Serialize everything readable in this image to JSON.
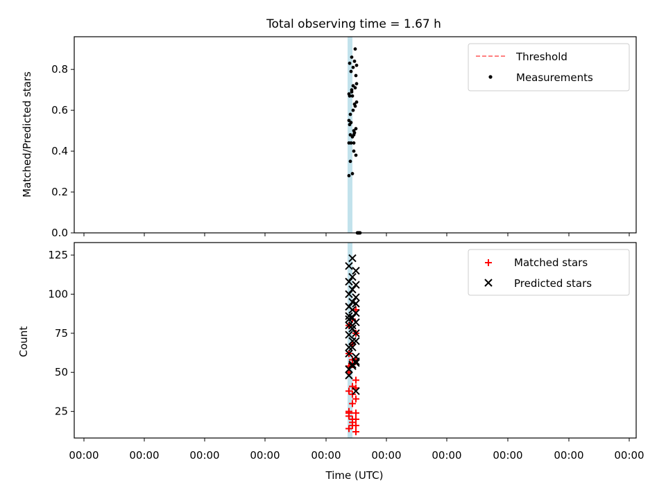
{
  "title": "Total observing time = 1.67 h",
  "chart_data": [
    {
      "type": "scatter",
      "panel": "top",
      "ylabel": "Matched/Predicted stars",
      "xlabel": "",
      "x_tick_labels": [
        "00:00",
        "00:00",
        "00:00",
        "00:00",
        "00:00",
        "00:00",
        "00:00",
        "00:00",
        "00:00",
        "00:00"
      ],
      "ylim": [
        0,
        0.96
      ],
      "y_ticks": [
        0,
        0.2,
        0.4,
        0.6,
        0.8
      ],
      "y_tick_labels": [
        "0.0",
        "0.2",
        "0.4",
        "0.6",
        "0.8"
      ],
      "grid": false,
      "legend": {
        "placement": "top-right",
        "entries": [
          "Threshold",
          "Measurements"
        ]
      },
      "series": [
        {
          "name": "Measurements",
          "marker": "dot",
          "color": "#000000",
          "x": [
            0,
            1,
            2,
            3,
            4,
            5,
            6,
            7,
            8,
            9,
            10,
            11,
            12,
            13,
            14,
            15,
            16,
            17,
            18,
            19,
            20,
            21,
            22,
            23,
            24,
            25,
            26,
            27,
            28,
            29,
            30,
            31,
            32,
            33,
            34,
            35,
            36,
            37,
            38,
            39,
            40,
            41,
            42,
            43,
            44,
            45,
            46,
            47,
            48,
            49,
            50
          ],
          "y": [
            0.28,
            0.44,
            0.58,
            0.62,
            0.7,
            0.73,
            0.81,
            0.83,
            0.84,
            0.79,
            0.77,
            0.67,
            0.55,
            0.5,
            0.48,
            0.9,
            0.86,
            0.82,
            0.72,
            0.67,
            0.63,
            0.54,
            0.51,
            0.47,
            0.44,
            0.4,
            0.35,
            0.71,
            0.69,
            0.64,
            0.6,
            0.53,
            0.49,
            0.44,
            0.38,
            0.29,
            0.68,
            0.48,
            0.0,
            0.0,
            0.0,
            0.0,
            0.0,
            0.0,
            0.0,
            0.0,
            0.0,
            0.0,
            0.0,
            0.0,
            0.0
          ]
        }
      ]
    },
    {
      "type": "scatter",
      "panel": "bottom",
      "ylabel": "Count",
      "xlabel": "Time (UTC)",
      "x_tick_labels": [
        "00:00",
        "00:00",
        "00:00",
        "00:00",
        "00:00",
        "00:00",
        "00:00",
        "00:00",
        "00:00",
        "00:00"
      ],
      "ylim": [
        8,
        133
      ],
      "y_ticks": [
        25,
        50,
        75,
        100,
        125
      ],
      "y_tick_labels": [
        "25",
        "50",
        "75",
        "100",
        "125"
      ],
      "grid": false,
      "legend": {
        "placement": "top-right",
        "entries": [
          "Matched stars",
          "Predicted stars"
        ]
      },
      "series": [
        {
          "name": "Matched stars",
          "marker": "plus",
          "color": "#ff0000",
          "x": [
            0,
            1,
            2,
            3,
            4,
            5,
            6,
            7,
            8,
            9,
            10,
            11,
            12,
            13,
            14,
            15,
            16,
            17,
            18,
            19,
            20,
            21,
            22,
            23,
            24,
            25,
            26,
            27,
            28,
            29
          ],
          "y": [
            14,
            16,
            20,
            24,
            30,
            33,
            38,
            41,
            45,
            50,
            55,
            58,
            62,
            68,
            75,
            80,
            84,
            90,
            24,
            20,
            16,
            25,
            36,
            40,
            54,
            58,
            24,
            22,
            18,
            12
          ]
        },
        {
          "name": "Predicted stars",
          "marker": "x",
          "color": "#000000",
          "x": [
            0,
            1,
            2,
            3,
            4,
            5,
            6,
            7,
            8,
            9,
            10,
            11,
            12,
            13,
            14,
            15,
            16,
            17,
            18,
            19,
            20,
            21,
            22,
            23,
            24,
            25,
            26,
            27,
            28,
            29,
            30,
            31,
            32,
            33,
            34,
            35
          ],
          "y": [
            52,
            55,
            60,
            66,
            70,
            75,
            80,
            85,
            88,
            92,
            95,
            98,
            100,
            103,
            106,
            108,
            111,
            115,
            118,
            123,
            38,
            48,
            54,
            57,
            62,
            66,
            70,
            74,
            78,
            82,
            86,
            90,
            94,
            84,
            80,
            56
          ]
        }
      ]
    }
  ]
}
